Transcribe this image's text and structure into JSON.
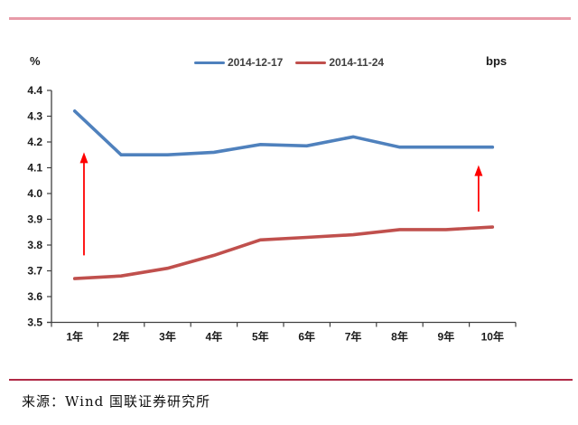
{
  "colors": {
    "top_rule": "#e89ba8",
    "bottom_rule": "#b02a46",
    "axis": "#404040",
    "blue_series": "#4F81BD",
    "red_series": "#C0504D",
    "arrow": "#ff0000"
  },
  "footer": {
    "source": "来源：Wind 国联证券研究所"
  },
  "chart_data": {
    "type": "line",
    "unit_left": "%",
    "unit_right": "bps",
    "legend_position": "top-center",
    "grid": false,
    "categories": [
      "1年",
      "2年",
      "3年",
      "4年",
      "5年",
      "6年",
      "7年",
      "8年",
      "9年",
      "10年"
    ],
    "series": [
      {
        "name": "2014-12-17",
        "color": "#4F81BD",
        "values": [
          4.32,
          4.15,
          4.15,
          4.16,
          4.19,
          4.185,
          4.22,
          4.18,
          4.18,
          4.18
        ]
      },
      {
        "name": "2014-11-24",
        "color": "#C0504D",
        "values": [
          3.67,
          3.68,
          3.71,
          3.76,
          3.82,
          3.83,
          3.84,
          3.86,
          3.86,
          3.87
        ]
      }
    ],
    "ylim": [
      3.5,
      4.4
    ],
    "yticks": [
      "4.4",
      "4.3",
      "4.2",
      "4.1",
      "4.0",
      "3.9",
      "3.8",
      "3.7",
      "3.6",
      "3.5"
    ],
    "annotations": [
      {
        "type": "arrow-up",
        "color": "#ff0000",
        "x_cat": 0.7,
        "y_from": 3.76,
        "y_to": 4.16
      },
      {
        "type": "arrow-up",
        "color": "#ff0000",
        "x_cat": 9.2,
        "y_from": 3.93,
        "y_to": 4.11
      }
    ]
  }
}
